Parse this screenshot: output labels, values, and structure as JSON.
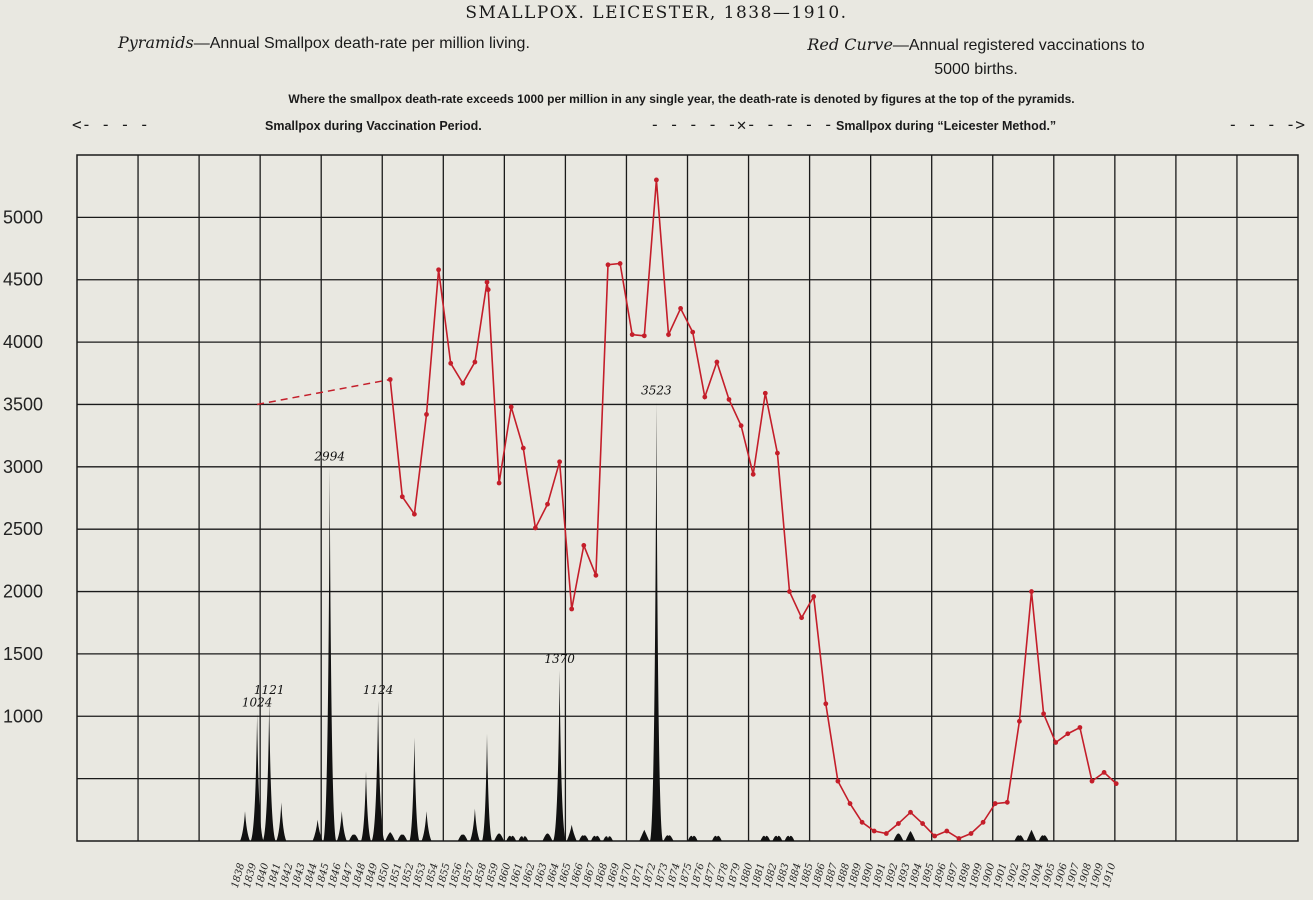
{
  "title": "SMALLPOX. LEICESTER, 1838—1910.",
  "legend": {
    "pyramids_name": "Pyramids",
    "pyramids_text": "—Annual Smallpox death-rate per million living.",
    "curve_name": "Red Curve",
    "curve_text": "—Annual registered vaccinations to",
    "curve_text2": "5000 births."
  },
  "note": "Where the smallpox death-rate exceeds 1000 per million in any single year, the death-rate is denoted by figures at the top of the pyramids.",
  "periods": {
    "vaccination": "Smallpox during Vaccination Period.",
    "leicester": "Smallpox during “Leicester Method.”",
    "arrow_left": "<- - - -",
    "arrow_mid": "- - - - -✕- - - - -",
    "arrow_right": "- - - ->"
  },
  "colors": {
    "curve": "#c41e2a",
    "pyramid": "#111111",
    "grid": "#1a1a1a",
    "background": "#e9e8e1"
  },
  "chart_data": {
    "type": "line",
    "title": "SMALLPOX. LEICESTER, 1838—1910.",
    "ylim": [
      0,
      5500
    ],
    "y_ticks": [
      1000,
      1500,
      2000,
      2500,
      3000,
      3500,
      4000,
      4500,
      5000
    ],
    "x_range": [
      1838,
      1910
    ],
    "grid": true,
    "x_tick_labels": [
      "1838",
      "1839",
      "1840",
      "1841",
      "1842",
      "1843",
      "1844",
      "1845",
      "1846",
      "1847",
      "1848",
      "1849",
      "1850",
      "1851",
      "1852",
      "1853",
      "1854",
      "1855",
      "1856",
      "1857",
      "1858",
      "1859",
      "1860",
      "1861",
      "1862",
      "1863",
      "1864",
      "1865",
      "1866",
      "1867",
      "1868",
      "1869",
      "1870",
      "1871",
      "1872",
      "1873",
      "1874",
      "1875",
      "1876",
      "1877",
      "1878",
      "1879",
      "1880",
      "1881",
      "1882",
      "1883",
      "1884",
      "1885",
      "1886",
      "1887",
      "1888",
      "1889",
      "1890",
      "1891",
      "1892",
      "1893",
      "1894",
      "1895",
      "1896",
      "1897",
      "1898",
      "1899",
      "1900",
      "1901",
      "1902",
      "1903",
      "1904",
      "1905",
      "1906",
      "1907",
      "1908",
      "1909",
      "1910"
    ],
    "dashed_segment": {
      "x": [
        1839,
        1850
      ],
      "y": [
        3500,
        3700
      ]
    },
    "vaccinations": {
      "x": [
        1850,
        1851,
        1852,
        1853,
        1854,
        1855,
        1856,
        1857,
        1858,
        1858.1,
        1859,
        1860,
        1861,
        1862,
        1863,
        1864,
        1865,
        1866,
        1867,
        1868,
        1869,
        1870,
        1871,
        1872,
        1873,
        1874,
        1875,
        1876,
        1877,
        1878,
        1879,
        1880,
        1881,
        1882,
        1883,
        1884,
        1885,
        1886,
        1887,
        1888,
        1889,
        1890,
        1891,
        1892,
        1893,
        1894,
        1895,
        1896,
        1897,
        1898,
        1899,
        1900,
        1901,
        1902,
        1903,
        1904,
        1905,
        1906,
        1907,
        1908,
        1909,
        1910
      ],
      "y": [
        3700,
        2760,
        2620,
        3420,
        4580,
        3830,
        3670,
        3840,
        4480,
        4420,
        2870,
        3480,
        3150,
        2510,
        2700,
        3040,
        1860,
        2370,
        2130,
        4620,
        4630,
        4060,
        4050,
        5300,
        4060,
        4270,
        4080,
        3560,
        3840,
        3540,
        3330,
        2940,
        3590,
        3110,
        2000,
        1790,
        1960,
        1100,
        480,
        300,
        150,
        80,
        60,
        140,
        230,
        140,
        40,
        80,
        20,
        60,
        150,
        300,
        310,
        960,
        2000,
        1020,
        790,
        860,
        910,
        480,
        550,
        460
      ]
    },
    "death_rate": {
      "x": [
        1838,
        1839,
        1840,
        1841,
        1844,
        1845,
        1846,
        1847,
        1848,
        1849,
        1850,
        1851,
        1852,
        1853,
        1856,
        1857,
        1858,
        1859,
        1860,
        1861,
        1863,
        1864,
        1865,
        1866,
        1867,
        1868,
        1871,
        1872,
        1873,
        1875,
        1877,
        1881,
        1882,
        1883,
        1892,
        1893,
        1902,
        1903,
        1904
      ],
      "y": [
        240,
        1024,
        1121,
        310,
        170,
        2994,
        240,
        50,
        560,
        1124,
        70,
        50,
        830,
        240,
        50,
        260,
        860,
        60,
        30,
        20,
        60,
        1370,
        130,
        40,
        30,
        20,
        90,
        3523,
        40,
        30,
        30,
        30,
        30,
        30,
        60,
        80,
        40,
        90,
        40
      ]
    },
    "pyramid_labels": [
      {
        "year": 1839,
        "text": "1024"
      },
      {
        "year": 1840,
        "text": "1121"
      },
      {
        "year": 1845,
        "text": "2994"
      },
      {
        "year": 1849,
        "text": "1124"
      },
      {
        "year": 1864,
        "text": "1370"
      },
      {
        "year": 1872,
        "text": "3523"
      }
    ]
  }
}
